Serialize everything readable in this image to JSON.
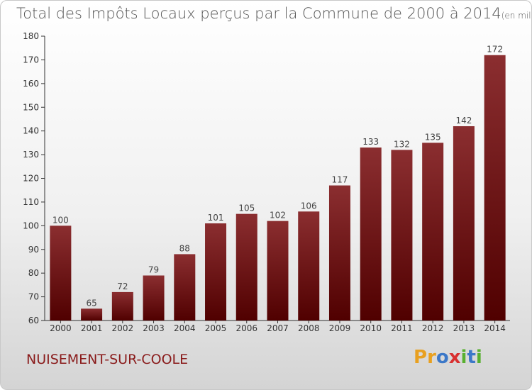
{
  "title": "Total des Impôts Locaux perçus par la Commune de 2000 à 2014",
  "title_unit": "(en milliers d'€)",
  "commune": "NUISEMENT-SUR-COOLE",
  "logo": {
    "letters": [
      "P",
      "r",
      "o",
      "x",
      "i",
      "t",
      "i"
    ],
    "colors": [
      "#e8a020",
      "#e8a020",
      "#3c78c8",
      "#d83030",
      "#58b030",
      "#3c78c8",
      "#58b030"
    ]
  },
  "colors": {
    "bar_top": "#8b2e30",
    "bar_bottom": "#500000",
    "commune": "#8a1b1b"
  },
  "chart_data": {
    "type": "bar",
    "categories": [
      "2000",
      "2001",
      "2002",
      "2003",
      "2004",
      "2005",
      "2006",
      "2007",
      "2008",
      "2009",
      "2010",
      "2011",
      "2012",
      "2013",
      "2014"
    ],
    "values": [
      100,
      65,
      72,
      79,
      88,
      101,
      105,
      102,
      106,
      117,
      133,
      132,
      135,
      142,
      172
    ],
    "ylim": [
      60,
      180
    ],
    "yticks": [
      60,
      70,
      80,
      90,
      100,
      110,
      120,
      130,
      140,
      150,
      160,
      170,
      180
    ],
    "grid": false,
    "data_labels": true
  }
}
